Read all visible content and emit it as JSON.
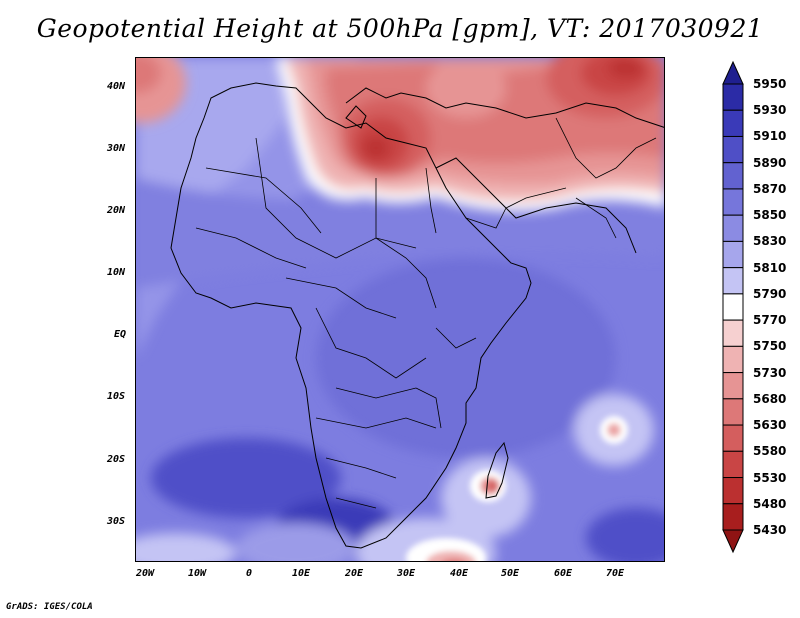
{
  "title": "Geopotential Height at 500hPa [gpm], VT: 2017030921",
  "credit": "GrADS: IGES/COLA",
  "lat_labels": [
    "40N",
    "30N",
    "20N",
    "10N",
    "EQ",
    "10S",
    "20S",
    "30S"
  ],
  "lon_labels": [
    "20W",
    "10W",
    "0",
    "10E",
    "20E",
    "30E",
    "40E",
    "50E",
    "60E",
    "70E"
  ],
  "colorbar": {
    "levels": [
      "5950",
      "5930",
      "5910",
      "5890",
      "5870",
      "5850",
      "5830",
      "5810",
      "5790",
      "5770",
      "5750",
      "5730",
      "5680",
      "5630",
      "5580",
      "5530",
      "5480",
      "5430"
    ],
    "colors": [
      "#1f1f8f",
      "#2b2ba6",
      "#3a3ab8",
      "#4f4fc6",
      "#6262d0",
      "#7676db",
      "#8b8be3",
      "#a6a6ec",
      "#c4c4f4",
      "#ffffff",
      "#f6d0d0",
      "#efb3b3",
      "#e69494",
      "#dd7878",
      "#d45e5e",
      "#c94545",
      "#bb3030",
      "#a81e1e",
      "#8f1414"
    ]
  },
  "field": {
    "variable": "Geopotential Height",
    "level": "500hPa",
    "units": "gpm",
    "valid_time": "2017030921"
  }
}
